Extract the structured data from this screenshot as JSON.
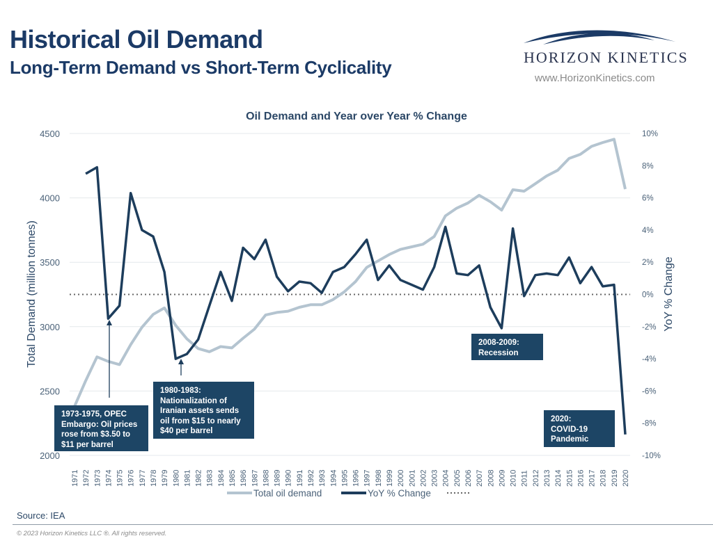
{
  "header": {
    "title": "Historical Oil Demand",
    "subtitle": "Long-Term Demand vs Short-Term Cyclicality",
    "logo_name": "HORIZON KINETICS",
    "logo_url": "www.HorizonKinetics.com"
  },
  "colors": {
    "title": "#1b3a66",
    "demand": "#b4c4d0",
    "yoy": "#1d3d5c",
    "annotation_bg": "#1d4565"
  },
  "annotations": [
    {
      "text": "1973-1975, OPEC Embargo: Oil prices rose from $3.50 to $11 per barrel"
    },
    {
      "text": "1980-1983: Nationalization of Iranian assets sends oil from $15 to nearly $40 per barrel"
    },
    {
      "text": "2008-2009: Recession"
    },
    {
      "text": "2020: COVID-19 Pandemic"
    }
  ],
  "footer": {
    "source": "Source:  IEA",
    "copyright": "© 2023 Horizon Kinetics LLC ®.  All rights reserved."
  },
  "chart_data": {
    "type": "line",
    "title": "Oil Demand and Year over Year % Change",
    "ylabel": "Total Demand (million tonnes)",
    "y2label": "YoY % Change",
    "ylim": [
      2000,
      4500
    ],
    "y2lim": [
      -10,
      10
    ],
    "yticks": [
      "2000",
      "2500",
      "3000",
      "3500",
      "4000",
      "4500"
    ],
    "y2ticks": [
      "-10%",
      "-8%",
      "-6%",
      "-4%",
      "-2%",
      "0%",
      "2%",
      "4%",
      "6%",
      "8%",
      "10%"
    ],
    "grid": true,
    "legend_position": "bottom",
    "x": [
      1971,
      1972,
      1973,
      1974,
      1975,
      1976,
      1977,
      1978,
      1979,
      1980,
      1981,
      1982,
      1983,
      1984,
      1985,
      1986,
      1987,
      1988,
      1989,
      1990,
      1991,
      1992,
      1993,
      1994,
      1995,
      1996,
      1997,
      1998,
      1999,
      2000,
      2001,
      2002,
      2003,
      2004,
      2005,
      2006,
      2007,
      2008,
      2009,
      2010,
      2011,
      2012,
      2013,
      2014,
      2015,
      2016,
      2017,
      2018,
      2019,
      2020
    ],
    "series": [
      {
        "name": "Total oil demand",
        "axis": "left",
        "values": [
          2380,
          2580,
          2765,
          2730,
          2705,
          2860,
          2995,
          3095,
          3145,
          3010,
          2905,
          2830,
          2805,
          2845,
          2835,
          2910,
          2980,
          3090,
          3110,
          3120,
          3150,
          3170,
          3170,
          3210,
          3270,
          3350,
          3460,
          3510,
          3560,
          3600,
          3620,
          3640,
          3700,
          3860,
          3920,
          3960,
          4020,
          3970,
          3905,
          4063,
          4052,
          4110,
          4170,
          4215,
          4306,
          4338,
          4400,
          4430,
          4455,
          4068
        ]
      },
      {
        "name": "YoY % Change",
        "axis": "right",
        "values": [
          null,
          7.5,
          7.9,
          -1.5,
          -0.7,
          6.3,
          4.0,
          3.6,
          1.4,
          -4.0,
          -3.7,
          -2.8,
          -0.7,
          1.4,
          -0.4,
          2.9,
          2.2,
          3.4,
          1.1,
          0.2,
          0.8,
          0.7,
          0.1,
          1.4,
          1.7,
          2.5,
          3.4,
          0.9,
          1.8,
          0.9,
          0.6,
          0.3,
          1.7,
          4.2,
          1.3,
          1.2,
          1.8,
          -0.8,
          -2.1,
          4.1,
          -0.1,
          1.2,
          1.3,
          1.2,
          2.3,
          0.7,
          1.7,
          0.5,
          0.6,
          -8.7
        ]
      },
      {
        "name": "",
        "axis": "right",
        "style": "dotted",
        "values_constant": 0
      }
    ]
  }
}
